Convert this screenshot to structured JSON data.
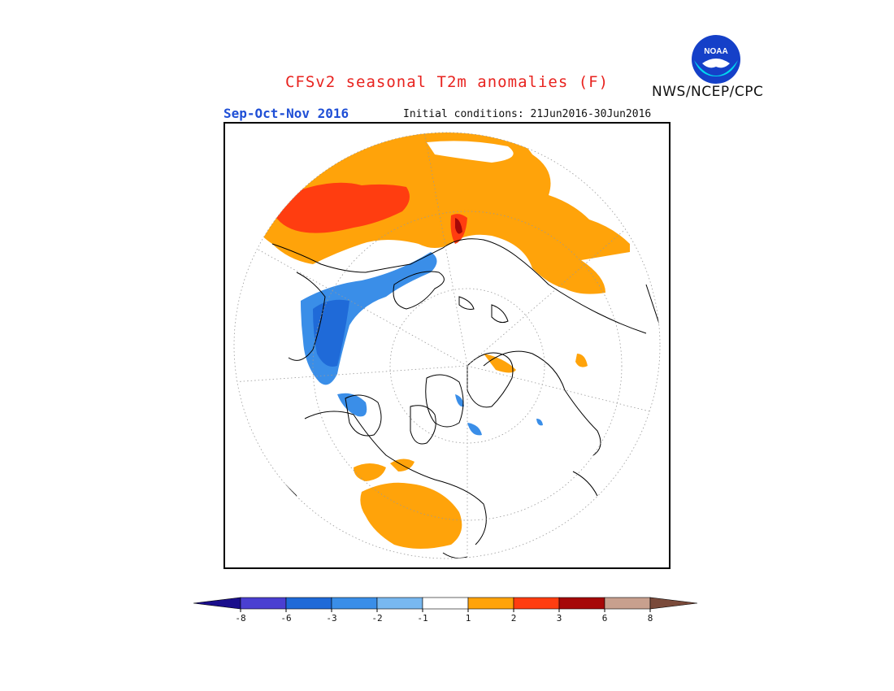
{
  "header": {
    "title": "CFSv2 seasonal T2m anomalies (F)",
    "season": "Sep-Oct-Nov 2016",
    "initial_conditions": "Initial conditions: 21Jun2016-30Jun2016",
    "agency": "NWS/NCEP/CPC",
    "logo_text": "NOAA"
  },
  "legend": {
    "colors": [
      "#1a0e8c",
      "#4a3fd1",
      "#1f6ad8",
      "#3a8ee8",
      "#78b8f0",
      "#ffffff",
      "#ffa30a",
      "#ff3d10",
      "#a60808",
      "#c8a08e",
      "#7a4a3a"
    ],
    "tick_labels": [
      "-8",
      "-6",
      "-3",
      "-2",
      "-1",
      "1",
      "2",
      "3",
      "6",
      "8"
    ]
  }
}
